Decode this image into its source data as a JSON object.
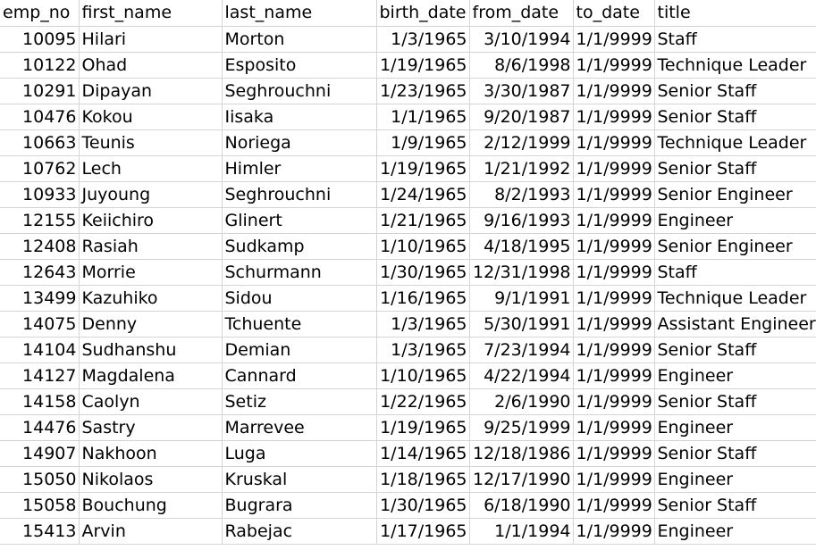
{
  "columns": [
    "emp_no",
    "first_name",
    "last_name",
    "birth_date",
    "from_date",
    "to_date",
    "title"
  ],
  "rows": [
    [
      "10095",
      "Hilari",
      "Morton",
      "1/3/1965",
      "3/10/1994",
      "1/1/9999",
      "Staff"
    ],
    [
      "10122",
      "Ohad",
      "Esposito",
      "1/19/1965",
      "8/6/1998",
      "1/1/9999",
      "Technique Leader"
    ],
    [
      "10291",
      "Dipayan",
      "Seghrouchni",
      "1/23/1965",
      "3/30/1987",
      "1/1/9999",
      "Senior Staff"
    ],
    [
      "10476",
      "Kokou",
      "Iisaka",
      "1/1/1965",
      "9/20/1987",
      "1/1/9999",
      "Senior Staff"
    ],
    [
      "10663",
      "Teunis",
      "Noriega",
      "1/9/1965",
      "2/12/1999",
      "1/1/9999",
      "Technique Leader"
    ],
    [
      "10762",
      "Lech",
      "Himler",
      "1/19/1965",
      "1/21/1992",
      "1/1/9999",
      "Senior Staff"
    ],
    [
      "10933",
      "Juyoung",
      "Seghrouchni",
      "1/24/1965",
      "8/2/1993",
      "1/1/9999",
      "Senior Engineer"
    ],
    [
      "12155",
      "Keiichiro",
      "Glinert",
      "1/21/1965",
      "9/16/1993",
      "1/1/9999",
      "Engineer"
    ],
    [
      "12408",
      "Rasiah",
      "Sudkamp",
      "1/10/1965",
      "4/18/1995",
      "1/1/9999",
      "Senior Engineer"
    ],
    [
      "12643",
      "Morrie",
      "Schurmann",
      "1/30/1965",
      "12/31/1998",
      "1/1/9999",
      "Staff"
    ],
    [
      "13499",
      "Kazuhiko",
      "Sidou",
      "1/16/1965",
      "9/1/1991",
      "1/1/9999",
      "Technique Leader"
    ],
    [
      "14075",
      "Denny",
      "Tchuente",
      "1/3/1965",
      "5/30/1991",
      "1/1/9999",
      "Assistant Engineer"
    ],
    [
      "14104",
      "Sudhanshu",
      "Demian",
      "1/3/1965",
      "7/23/1994",
      "1/1/9999",
      "Senior Staff"
    ],
    [
      "14127",
      "Magdalena",
      "Cannard",
      "1/10/1965",
      "4/22/1994",
      "1/1/9999",
      "Engineer"
    ],
    [
      "14158",
      "Caolyn",
      "Setiz",
      "1/22/1965",
      "2/6/1990",
      "1/1/9999",
      "Senior Staff"
    ],
    [
      "14476",
      "Sastry",
      "Marrevee",
      "1/19/1965",
      "9/25/1999",
      "1/1/9999",
      "Engineer"
    ],
    [
      "14907",
      "Nakhoon",
      "Luga",
      "1/14/1965",
      "12/18/1986",
      "1/1/9999",
      "Senior Staff"
    ],
    [
      "15050",
      "Nikolaos",
      "Kruskal",
      "1/18/1965",
      "12/17/1990",
      "1/1/9999",
      "Engineer"
    ],
    [
      "15058",
      "Bouchung",
      "Bugrara",
      "1/30/1965",
      "6/18/1990",
      "1/1/9999",
      "Senior Staff"
    ],
    [
      "15413",
      "Arvin",
      "Rabejac",
      "1/17/1965",
      "1/1/1994",
      "1/1/9999",
      "Engineer"
    ]
  ],
  "colors": {
    "gridline": "#d4d4d4",
    "text": "#000000",
    "background": "#ffffff"
  }
}
